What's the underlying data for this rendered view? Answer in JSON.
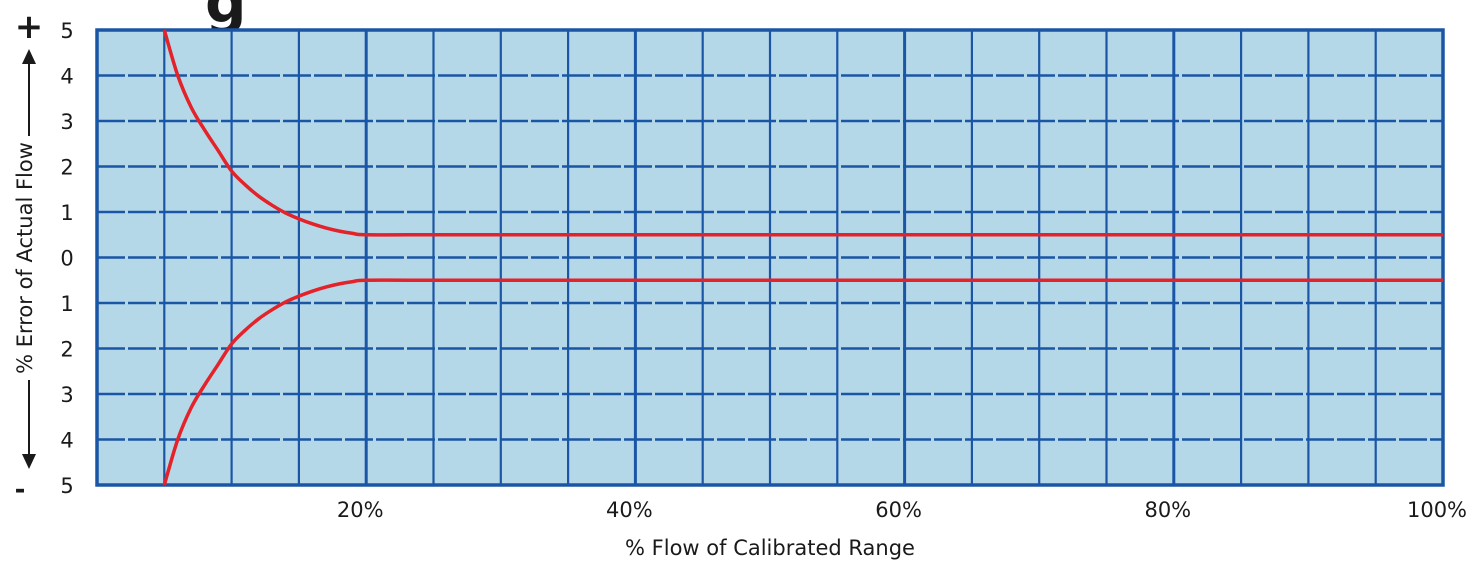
{
  "chart_data": {
    "type": "line",
    "title_fragment": "g",
    "xlabel": "% Flow of Calibrated Range",
    "ylabel": "% Error of Actual Flow",
    "ylabel_plus": "+",
    "ylabel_minus": "-",
    "x_ticks": [
      "20%",
      "40%",
      "60%",
      "80%",
      "100%"
    ],
    "y_ticks": [
      "5",
      "4",
      "3",
      "2",
      "1",
      "0",
      "1",
      "2",
      "3",
      "4",
      "5"
    ],
    "xlim": [
      0,
      100
    ],
    "ylim": [
      -5,
      5
    ],
    "grid": true,
    "legend": "none",
    "series": [
      {
        "x": [
          5,
          6,
          7,
          8,
          9,
          10,
          11,
          12,
          13,
          14,
          15,
          16,
          17,
          18,
          19,
          20,
          25,
          30,
          40,
          50,
          60,
          70,
          80,
          90,
          100
        ],
        "y": [
          5.0,
          4.0,
          3.3,
          2.8,
          2.35,
          1.9,
          1.6,
          1.35,
          1.15,
          0.98,
          0.85,
          0.74,
          0.65,
          0.58,
          0.53,
          0.5,
          0.5,
          0.5,
          0.5,
          0.5,
          0.5,
          0.5,
          0.5,
          0.5,
          0.5
        ]
      },
      {
        "x": [
          5,
          6,
          7,
          8,
          9,
          10,
          11,
          12,
          13,
          14,
          15,
          16,
          17,
          18,
          19,
          20,
          25,
          30,
          40,
          50,
          60,
          70,
          80,
          90,
          100
        ],
        "y": [
          -5.0,
          -4.0,
          -3.3,
          -2.8,
          -2.35,
          -1.9,
          -1.6,
          -1.35,
          -1.15,
          -0.98,
          -0.85,
          -0.74,
          -0.65,
          -0.58,
          -0.53,
          -0.5,
          -0.5,
          -0.5,
          -0.5,
          -0.5,
          -0.5,
          -0.5,
          -0.5,
          -0.5,
          -0.5
        ]
      }
    ],
    "colors": {
      "plot_background": "#b5d8e8",
      "grid": "#1b56a6",
      "curve": "#e3222a",
      "title": "#e3222a",
      "text": "#1a1a1a"
    }
  }
}
